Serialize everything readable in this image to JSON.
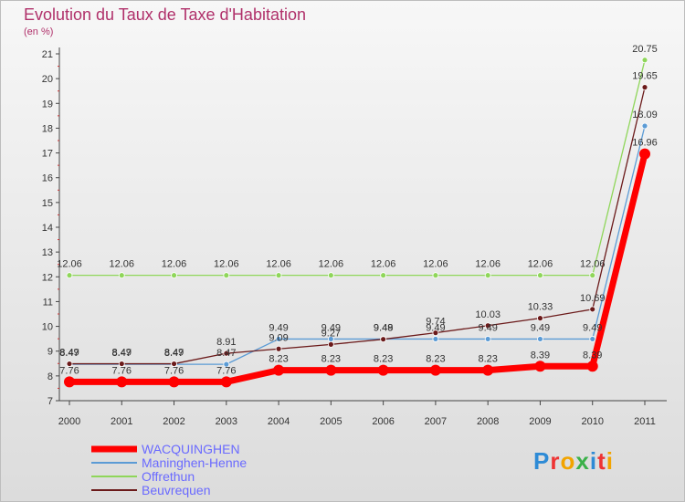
{
  "title": "Evolution du Taux de Taxe d'Habitation",
  "unit": "(en %)",
  "brand": "Proxiti",
  "chart_data": {
    "type": "line",
    "title": "Evolution du Taux de Taxe d'Habitation",
    "ylabel": "(en %)",
    "xlabel": "",
    "ylim": [
      7,
      21
    ],
    "yticks": [
      7,
      8,
      9,
      10,
      11,
      12,
      13,
      14,
      15,
      16,
      17,
      18,
      19,
      20,
      21
    ],
    "categories": [
      "2000",
      "2001",
      "2002",
      "2003",
      "2004",
      "2005",
      "2006",
      "2007",
      "2008",
      "2009",
      "2010",
      "2011"
    ],
    "series": [
      {
        "name": "WACQUINGHEN",
        "color": "#ff0000",
        "values": [
          7.76,
          7.76,
          7.76,
          7.76,
          8.23,
          8.23,
          8.23,
          8.23,
          8.23,
          8.39,
          8.39,
          16.96
        ],
        "labels": [
          "7.76",
          "7.76",
          "7.76",
          "7.76",
          "8.23",
          "8.23",
          "8.23",
          "8.23",
          "8.23",
          "8.39",
          "8.39",
          "16.96"
        ]
      },
      {
        "name": "Maninghen-Henne",
        "color": "#5b9bd5",
        "values": [
          8.47,
          8.47,
          8.47,
          8.47,
          9.49,
          9.49,
          9.49,
          9.49,
          9.49,
          9.49,
          9.49,
          18.09
        ],
        "labels": [
          "8.47",
          "8.47",
          "8.47",
          "8.47",
          "9.49",
          "9.49",
          "9.49",
          "9.49",
          "9.49",
          "9.49",
          "9.49",
          "18.09"
        ]
      },
      {
        "name": "Offrethun",
        "color": "#8fd65a",
        "values": [
          12.06,
          12.06,
          12.06,
          12.06,
          12.06,
          12.06,
          12.06,
          12.06,
          12.06,
          12.06,
          12.06,
          20.75
        ],
        "labels": [
          "12.06",
          "12.06",
          "12.06",
          "12.06",
          "12.06",
          "12.06",
          "12.06",
          "12.06",
          "12.06",
          "12.06",
          "12.06",
          "20.75"
        ]
      },
      {
        "name": "Beuvrequen",
        "color": "#6b1a1a",
        "values": [
          8.49,
          8.49,
          8.49,
          8.91,
          9.09,
          9.27,
          9.48,
          9.74,
          10.03,
          10.33,
          10.69,
          19.65
        ],
        "labels": [
          "8.49",
          "8.49",
          "8.49",
          "8.91",
          "9.09",
          "9.27",
          "9.48",
          "9.74",
          "10.03",
          "10.33",
          "10.69",
          "19.65"
        ]
      }
    ],
    "legend": "bottom-left"
  }
}
